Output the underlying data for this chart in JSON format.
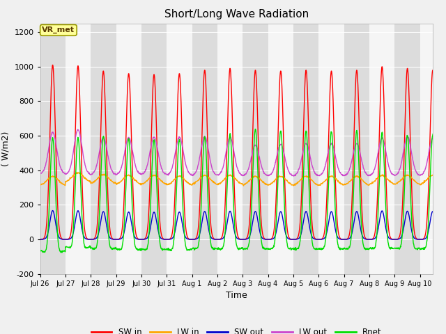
{
  "title": "Short/Long Wave Radiation",
  "ylabel": "( W/m2)",
  "xlabel": "Time",
  "ylim": [
    -200,
    1250
  ],
  "xlim": [
    0,
    15.5
  ],
  "series": {
    "SW_in": {
      "color": "#ff0000",
      "label": "SW in"
    },
    "LW_in": {
      "color": "#ffa500",
      "label": "LW in"
    },
    "SW_out": {
      "color": "#0000cc",
      "label": "SW out"
    },
    "LW_out": {
      "color": "#cc44cc",
      "label": "LW out"
    },
    "Rnet": {
      "color": "#00dd00",
      "label": "Rnet"
    }
  },
  "xtick_labels": [
    "Jul 26",
    "Jul 27",
    "Jul 28",
    "Jul 29",
    "Jul 30",
    "Jul 31",
    "Aug 1",
    "Aug 2",
    "Aug 3",
    "Aug 4",
    "Aug 5",
    "Aug 6",
    "Aug 7",
    "Aug 8",
    "Aug 9",
    "Aug 10"
  ],
  "xtick_positions": [
    0,
    1,
    2,
    3,
    4,
    5,
    6,
    7,
    8,
    9,
    10,
    11,
    12,
    13,
    14,
    15
  ],
  "ytick_labels": [
    "-200",
    "0",
    "200",
    "400",
    "600",
    "800",
    "1000",
    "1200"
  ],
  "ytick_positions": [
    -200,
    0,
    200,
    400,
    600,
    800,
    1000,
    1200
  ],
  "fig_bg_color": "#f0f0f0",
  "plot_bg_color": "#ffffff",
  "band_color_dark": "#dcdcdc",
  "band_color_light": "#f5f5f5",
  "annotation_text": "VR_met",
  "annotation_bg": "#ffff99",
  "annotation_border": "#999900",
  "figsize": [
    6.4,
    4.8
  ],
  "dpi": 100
}
